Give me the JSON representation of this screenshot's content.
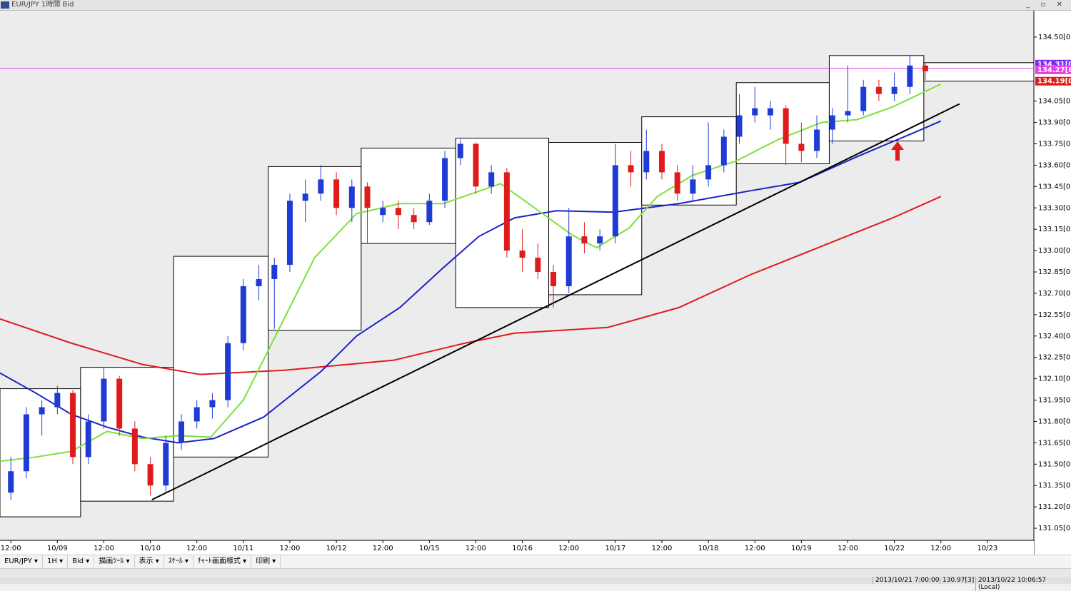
{
  "window": {
    "title": "EUR/JPY 1時間 Bid"
  },
  "toolbar": [
    "EUR/JPY ▾",
    "1H ▾",
    "Bid ▾",
    "描画ﾂｰﾙ ▾",
    "表示 ▾",
    "ｽｹｰﾙ ▾",
    "ﾁｬｰﾄ画面様式 ▾",
    "印刷 ▾"
  ],
  "status": [
    "2013/10/21 7:00:00",
    "130.97[3]",
    "2013/10/22 10:06:57 (Local)"
  ],
  "chart_data": {
    "type": "candlestick",
    "up_color": "#1f3bd6",
    "down_color": "#e01b1b",
    "xlim": [
      -0.7,
      66
    ],
    "ylim": [
      130.965,
      134.67
    ],
    "xticks": [
      {
        "value": 0,
        "label": "12:00"
      },
      {
        "value": 3,
        "label": "10/09"
      },
      {
        "value": 6,
        "label": "12:00"
      },
      {
        "value": 9,
        "label": "10/10"
      },
      {
        "value": 12,
        "label": "12:00"
      },
      {
        "value": 15,
        "label": "10/11"
      },
      {
        "value": 18,
        "label": "12:00"
      },
      {
        "value": 21,
        "label": "10/12"
      },
      {
        "value": 24,
        "label": "12:00"
      },
      {
        "value": 27,
        "label": "10/15"
      },
      {
        "value": 30,
        "label": "12:00"
      },
      {
        "value": 33,
        "label": "10/16"
      },
      {
        "value": 36,
        "label": "12:00"
      },
      {
        "value": 39,
        "label": "10/17"
      },
      {
        "value": 42,
        "label": "12:00"
      },
      {
        "value": 45,
        "label": "10/18"
      },
      {
        "value": 48,
        "label": "12:00"
      },
      {
        "value": 51,
        "label": "10/19"
      },
      {
        "value": 54,
        "label": "12:00"
      },
      {
        "value": 57,
        "label": "10/22"
      },
      {
        "value": 60,
        "label": "12:00"
      },
      {
        "value": 63,
        "label": "10/23"
      }
    ],
    "yticks": [
      {
        "value": 131.05,
        "label": "131.05[0]"
      },
      {
        "value": 131.2,
        "label": "131.20[0]"
      },
      {
        "value": 131.35,
        "label": "131.35[0]"
      },
      {
        "value": 131.5,
        "label": "131.50[0]"
      },
      {
        "value": 131.65,
        "label": "131.65[0]"
      },
      {
        "value": 131.8,
        "label": "131.80[0]"
      },
      {
        "value": 131.95,
        "label": "131.95[0]"
      },
      {
        "value": 132.1,
        "label": "132.10[0]"
      },
      {
        "value": 132.25,
        "label": "132.25[0]"
      },
      {
        "value": 132.4,
        "label": "132.40[0]"
      },
      {
        "value": 132.55,
        "label": "132.55[0]"
      },
      {
        "value": 132.7,
        "label": "132.70[0]"
      },
      {
        "value": 132.85,
        "label": "132.85[0]"
      },
      {
        "value": 133.0,
        "label": "133.00[0]"
      },
      {
        "value": 133.15,
        "label": "133.15[0]"
      },
      {
        "value": 133.3,
        "label": "133.30[0]"
      },
      {
        "value": 133.45,
        "label": "133.45[0]"
      },
      {
        "value": 133.6,
        "label": "133.60[0]"
      },
      {
        "value": 133.75,
        "label": "133.75[0]"
      },
      {
        "value": 133.9,
        "label": "133.90[0]"
      },
      {
        "value": 134.05,
        "label": "134.05[0]"
      },
      {
        "value": 134.5,
        "label": "134.50[0]"
      }
    ],
    "candles": [
      [
        131.3,
        131.55,
        131.25,
        131.45
      ],
      [
        131.45,
        131.9,
        131.4,
        131.85
      ],
      [
        131.85,
        131.95,
        131.7,
        131.9
      ],
      [
        131.9,
        132.05,
        131.85,
        132.0
      ],
      [
        132.0,
        132.02,
        131.5,
        131.55
      ],
      [
        131.55,
        131.85,
        131.5,
        131.8
      ],
      [
        131.8,
        132.18,
        131.75,
        132.1
      ],
      [
        132.1,
        132.12,
        131.7,
        131.75
      ],
      [
        131.75,
        131.8,
        131.45,
        131.5
      ],
      [
        131.5,
        131.55,
        131.28,
        131.35
      ],
      [
        131.35,
        131.7,
        131.3,
        131.65
      ],
      [
        131.65,
        131.85,
        131.6,
        131.8
      ],
      [
        131.8,
        131.95,
        131.75,
        131.9
      ],
      [
        131.9,
        132.0,
        131.82,
        131.95
      ],
      [
        131.95,
        132.4,
        131.9,
        132.35
      ],
      [
        132.35,
        132.8,
        132.3,
        132.75
      ],
      [
        132.75,
        132.9,
        132.65,
        132.8
      ],
      [
        132.8,
        132.95,
        132.45,
        132.9
      ],
      [
        132.9,
        133.4,
        132.85,
        133.35
      ],
      [
        133.35,
        133.5,
        133.2,
        133.4
      ],
      [
        133.4,
        133.6,
        133.35,
        133.5
      ],
      [
        133.5,
        133.55,
        133.25,
        133.3
      ],
      [
        133.3,
        133.5,
        133.2,
        133.45
      ],
      [
        133.45,
        133.48,
        133.05,
        133.3
      ],
      [
        133.25,
        133.35,
        133.2,
        133.3
      ],
      [
        133.3,
        133.35,
        133.15,
        133.25
      ],
      [
        133.25,
        133.3,
        133.15,
        133.2
      ],
      [
        133.2,
        133.4,
        133.18,
        133.35
      ],
      [
        133.35,
        133.7,
        133.3,
        133.65
      ],
      [
        133.65,
        133.78,
        133.6,
        133.75
      ],
      [
        133.75,
        133.76,
        133.4,
        133.45
      ],
      [
        133.45,
        133.6,
        133.4,
        133.55
      ],
      [
        133.55,
        133.58,
        132.95,
        133.0
      ],
      [
        133.0,
        133.15,
        132.85,
        132.95
      ],
      [
        132.95,
        133.05,
        132.8,
        132.85
      ],
      [
        132.85,
        132.9,
        132.6,
        132.75
      ],
      [
        132.75,
        133.3,
        132.7,
        133.1
      ],
      [
        133.1,
        133.2,
        132.98,
        133.05
      ],
      [
        133.05,
        133.15,
        133.0,
        133.1
      ],
      [
        133.1,
        133.75,
        133.05,
        133.6
      ],
      [
        133.6,
        133.7,
        133.45,
        133.55
      ],
      [
        133.55,
        133.85,
        133.5,
        133.7
      ],
      [
        133.7,
        133.75,
        133.5,
        133.55
      ],
      [
        133.55,
        133.6,
        133.35,
        133.4
      ],
      [
        133.4,
        133.6,
        133.35,
        133.5
      ],
      [
        133.5,
        133.9,
        133.45,
        133.6
      ],
      [
        133.6,
        133.85,
        133.55,
        133.8
      ],
      [
        133.8,
        134.1,
        133.75,
        133.95
      ],
      [
        133.95,
        134.15,
        133.9,
        134.0
      ],
      [
        133.95,
        134.05,
        133.85,
        134.0
      ],
      [
        134.0,
        134.02,
        133.6,
        133.75
      ],
      [
        133.75,
        133.9,
        133.62,
        133.7
      ],
      [
        133.7,
        133.95,
        133.65,
        133.85
      ],
      [
        133.85,
        134.0,
        133.75,
        133.95
      ],
      [
        133.95,
        134.3,
        133.9,
        133.98
      ],
      [
        133.98,
        134.2,
        133.95,
        134.15
      ],
      [
        134.15,
        134.2,
        134.05,
        134.1
      ],
      [
        134.1,
        134.25,
        134.05,
        134.15
      ],
      [
        134.15,
        134.37,
        134.1,
        134.3
      ],
      [
        134.3,
        134.32,
        134.2,
        134.26
      ]
    ],
    "lines": [
      {
        "color": "#e01b1b",
        "x": [
          -0.7,
          3.9,
          8.5,
          12.2,
          17.7,
          24.7,
          29.3,
          32.5,
          38.5,
          43.1,
          47.7,
          52.3,
          56.9,
          60.0
        ],
        "values": [
          132.52,
          132.35,
          132.2,
          132.13,
          132.16,
          132.23,
          132.35,
          132.42,
          132.46,
          132.6,
          132.83,
          133.03,
          133.23,
          133.38
        ]
      },
      {
        "color": "#1a23c8",
        "x": [
          -0.7,
          1.6,
          3.9,
          6.2,
          8.5,
          10.8,
          13.1,
          16.3,
          20.0,
          22.3,
          25.1,
          27.9,
          30.2,
          32.5,
          35.2,
          38.9,
          43.1,
          47.7,
          50.9,
          54.6,
          58.3,
          60.0
        ],
        "values": [
          132.14,
          132.0,
          131.85,
          131.76,
          131.69,
          131.65,
          131.68,
          131.83,
          132.15,
          132.4,
          132.6,
          132.88,
          133.1,
          133.23,
          133.28,
          133.27,
          133.33,
          133.42,
          133.48,
          133.66,
          133.83,
          133.91
        ]
      },
      {
        "color": "#7fe03a",
        "x": [
          -0.7,
          1.6,
          3.9,
          6.2,
          8.5,
          10.8,
          12.9,
          15.0,
          17.3,
          19.6,
          22.3,
          25.1,
          27.9,
          31.6,
          34.3,
          36.2,
          37.8,
          39.9,
          41.7,
          44.0,
          46.8,
          49.5,
          52.3,
          54.6,
          56.9,
          60.0
        ],
        "values": [
          131.52,
          131.55,
          131.59,
          131.73,
          131.68,
          131.7,
          131.69,
          131.95,
          132.45,
          132.95,
          133.26,
          133.33,
          133.33,
          133.47,
          133.26,
          133.11,
          133.02,
          133.16,
          133.38,
          133.53,
          133.63,
          133.78,
          133.9,
          133.92,
          134.01,
          134.17
        ]
      }
    ],
    "boxes": [
      {
        "x": [
          -0.7,
          4.5
        ],
        "high": 132.03,
        "low": 131.13
      },
      {
        "x": [
          4.5,
          10.5
        ],
        "high": 132.18,
        "low": 131.24
      },
      {
        "x": [
          10.5,
          16.6
        ],
        "high": 132.96,
        "low": 131.55
      },
      {
        "x": [
          16.6,
          22.6
        ],
        "high": 133.59,
        "low": 132.44
      },
      {
        "x": [
          22.6,
          28.7
        ],
        "high": 133.72,
        "low": 133.05
      },
      {
        "x": [
          28.7,
          34.7
        ],
        "high": 133.79,
        "low": 132.6
      },
      {
        "x": [
          34.7,
          40.7
        ],
        "high": 133.76,
        "low": 132.69
      },
      {
        "x": [
          40.7,
          46.8
        ],
        "high": 133.94,
        "low": 133.32
      },
      {
        "x": [
          46.8,
          52.8
        ],
        "high": 134.18,
        "low": 133.61
      },
      {
        "x": [
          52.8,
          58.9
        ],
        "high": 134.37,
        "low": 133.77
      },
      {
        "x": [
          58.9,
          66
        ],
        "high": 134.32,
        "low": 134.19
      }
    ],
    "trendline": {
      "x": [
        9.1,
        61.2
      ],
      "values": [
        131.25,
        134.03
      ]
    },
    "price_line": {
      "value": 134.28,
      "color": "#e040e0"
    },
    "price_tags": [
      {
        "value": 134.31,
        "label": "134.31[0]",
        "color": "#7a2cf0"
      },
      {
        "value": 134.27,
        "label": "134.27[8",
        "color": "#e040e0"
      },
      {
        "value": 134.19,
        "label": "134.19[0",
        "color": "#e01b1b"
      }
    ]
  }
}
